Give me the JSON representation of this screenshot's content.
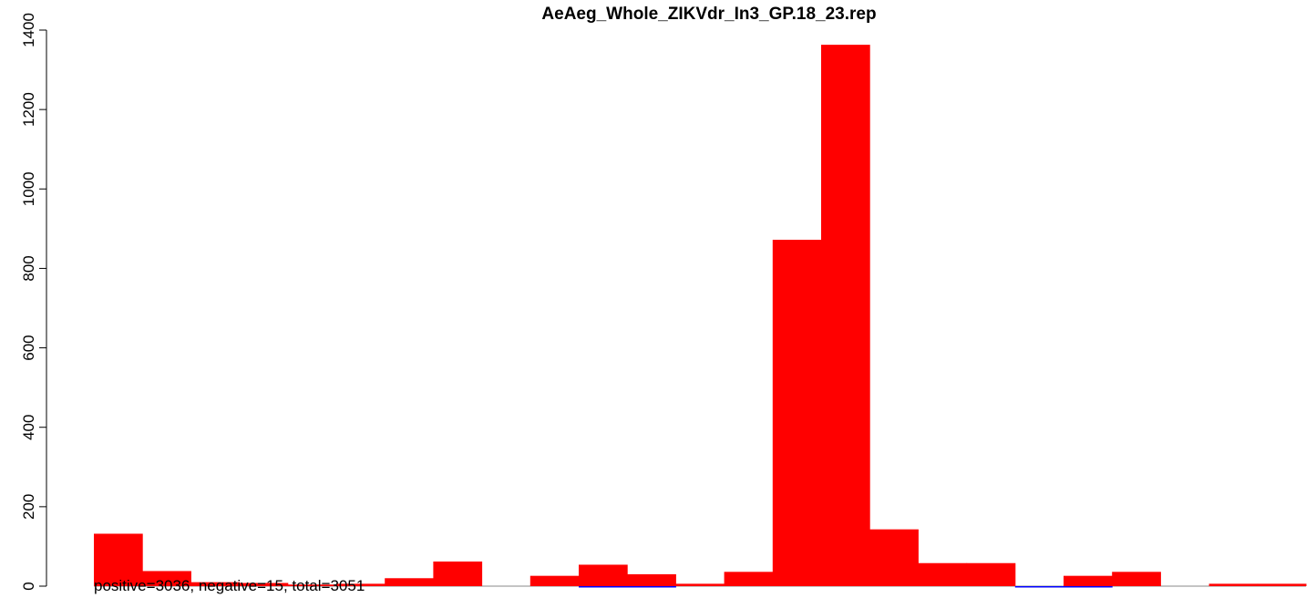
{
  "chart_data": {
    "type": "bar",
    "title": "AeAeg_Whole_ZIKVdr_In3_GP.18_23.rep",
    "xlabel": "",
    "ylabel": "",
    "ylim": [
      0,
      1400
    ],
    "yticks": [
      0,
      200,
      400,
      600,
      800,
      1000,
      1200,
      1400
    ],
    "grid": false,
    "legend": "none",
    "annotation": "positive=3036, negative=15, total=3051",
    "colors": {
      "positive": "#ff0000",
      "negative": "#0000ff",
      "baseline": "#888888"
    },
    "series": [
      {
        "name": "positive",
        "values": [
          132,
          38,
          10,
          8,
          4,
          6,
          20,
          62,
          0,
          26,
          54,
          30,
          6,
          36,
          872,
          1363,
          143,
          58,
          58,
          0,
          26,
          36,
          0,
          6,
          6
        ]
      },
      {
        "name": "negative",
        "values": [
          0,
          0,
          0,
          0,
          0,
          0,
          0,
          0,
          0,
          0,
          2,
          2,
          0,
          0,
          0,
          0,
          0,
          0,
          0,
          1,
          1,
          0,
          0,
          0,
          0
        ]
      }
    ]
  }
}
